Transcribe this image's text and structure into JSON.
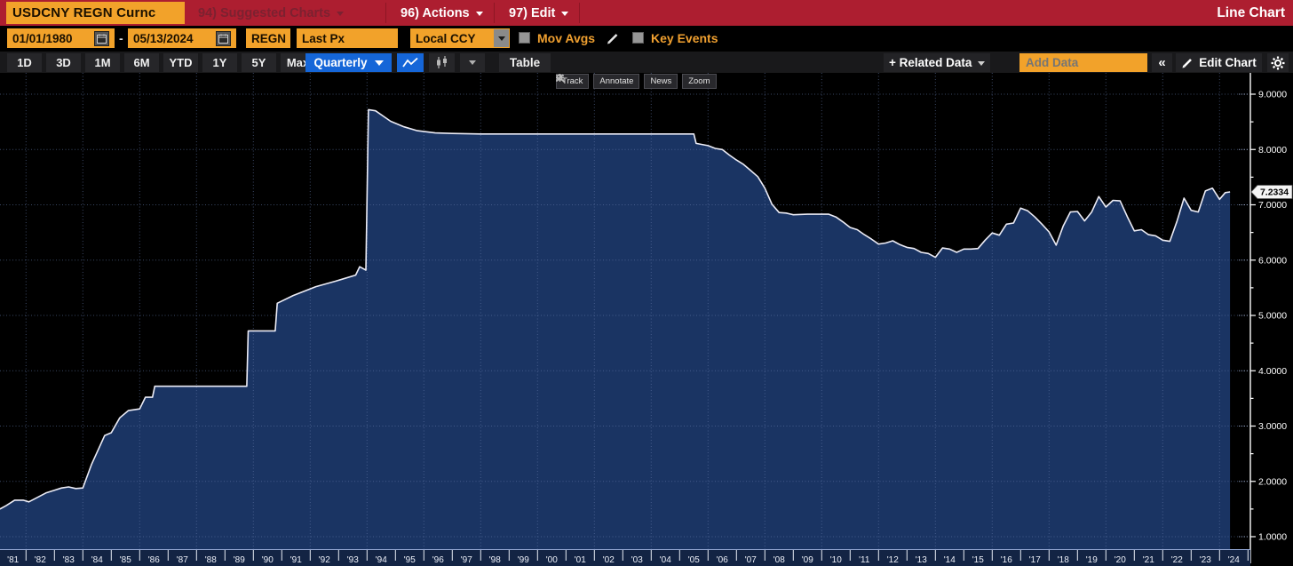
{
  "titlebar": {
    "ticker": "USDCNY REGN Curnc",
    "menus": [
      {
        "label": "94) Suggested Charts"
      },
      {
        "label": "96) Actions"
      },
      {
        "label": "97) Edit"
      }
    ],
    "window_title": "Line Chart"
  },
  "filters": {
    "date_from": "01/01/1980",
    "date_separator": "-",
    "date_to": "05/13/2024",
    "regn": "REGN",
    "price_field": "Last Px",
    "currency": "Local CCY",
    "mov_avgs_label": "Mov Avgs",
    "key_events_label": "Key Events"
  },
  "toolbar": {
    "ranges": [
      "1D",
      "3D",
      "1M",
      "6M",
      "YTD",
      "1Y",
      "5Y",
      "Max"
    ],
    "period": "Quarterly",
    "table_label": "Table",
    "related_data_label": "+ Related Data",
    "add_data_placeholder": "Add Data",
    "collapse_label": "«",
    "edit_chart_label": "Edit Chart"
  },
  "chart_tools": [
    "Track",
    "Annotate",
    "News",
    "Zoom"
  ],
  "chart_data": {
    "type": "area",
    "security": "USDCNY REGN Curnc",
    "field": "Last Px",
    "period": "Quarterly",
    "x_range_years": [
      1981.08,
      2024.37
    ],
    "ylim": [
      1.0,
      9.0
    ],
    "grid": "dotted",
    "y_ticks": [
      {
        "v": 9,
        "label": "9.0000"
      },
      {
        "v": 8,
        "label": "8.0000"
      },
      {
        "v": 7,
        "label": "7.0000"
      },
      {
        "v": 6,
        "label": "6.0000"
      },
      {
        "v": 5,
        "label": "5.0000"
      },
      {
        "v": 4,
        "label": "4.0000"
      },
      {
        "v": 3,
        "label": "3.0000"
      },
      {
        "v": 2,
        "label": "2.0000"
      },
      {
        "v": 1,
        "label": "1.0000"
      }
    ],
    "x_year_labels": [
      "'81",
      "'82",
      "'83",
      "'84",
      "'85",
      "'86",
      "'87",
      "'88",
      "'89",
      "'90",
      "'91",
      "'92",
      "'93",
      "'94",
      "'95",
      "'96",
      "'97",
      "'98",
      "'99",
      "'00",
      "'01",
      "'02",
      "'03",
      "'04",
      "'05",
      "'06",
      "'07",
      "'08",
      "'09",
      "'10",
      "'11",
      "'12",
      "'13",
      "'14",
      "'15",
      "'16",
      "'17",
      "'18",
      "'19",
      "'20",
      "'21",
      "'22",
      "'23",
      "'24"
    ],
    "last_price": {
      "value": 7.2334,
      "label": "7.2334"
    },
    "colors": {
      "fill": "#1a3463",
      "line": "#ececf6",
      "grid": "#5e74a4",
      "axis": "#ffffff",
      "background": "#000000",
      "strip": "#132444",
      "tag_bg": "#f4f4f4",
      "tag_text": "#000000"
    },
    "series": [
      {
        "name": "USDCNY Last Px",
        "points": [
          [
            1981.08,
            1.5
          ],
          [
            1981.3,
            1.56
          ],
          [
            1981.6,
            1.66
          ],
          [
            1981.9,
            1.66
          ],
          [
            1982.1,
            1.63
          ],
          [
            1982.4,
            1.71
          ],
          [
            1982.7,
            1.79
          ],
          [
            1983.0,
            1.84
          ],
          [
            1983.25,
            1.88
          ],
          [
            1983.5,
            1.9
          ],
          [
            1983.75,
            1.87
          ],
          [
            1984.0,
            1.88
          ],
          [
            1984.3,
            2.3
          ],
          [
            1984.77,
            2.83
          ],
          [
            1985.0,
            2.88
          ],
          [
            1985.3,
            3.15
          ],
          [
            1985.6,
            3.28
          ],
          [
            1986.0,
            3.31
          ],
          [
            1986.2,
            3.52
          ],
          [
            1986.45,
            3.52
          ],
          [
            1986.53,
            3.72
          ],
          [
            1987.0,
            3.72
          ],
          [
            1988.0,
            3.72
          ],
          [
            1989.0,
            3.72
          ],
          [
            1989.77,
            3.72
          ],
          [
            1989.82,
            4.72
          ],
          [
            1990.77,
            4.72
          ],
          [
            1990.84,
            5.22
          ],
          [
            1991.4,
            5.36
          ],
          [
            1992.2,
            5.52
          ],
          [
            1992.9,
            5.62
          ],
          [
            1993.6,
            5.73
          ],
          [
            1993.74,
            5.88
          ],
          [
            1993.96,
            5.82
          ],
          [
            1994.05,
            8.72
          ],
          [
            1994.3,
            8.7
          ],
          [
            1994.83,
            8.51
          ],
          [
            1995.3,
            8.41
          ],
          [
            1995.77,
            8.34
          ],
          [
            1996.4,
            8.3
          ],
          [
            1997.0,
            8.29
          ],
          [
            1998.0,
            8.28
          ],
          [
            2000.0,
            8.28
          ],
          [
            2002.0,
            8.28
          ],
          [
            2004.0,
            8.28
          ],
          [
            2005.5,
            8.28
          ],
          [
            2005.58,
            8.11
          ],
          [
            2006.0,
            8.07
          ],
          [
            2006.25,
            8.02
          ],
          [
            2006.5,
            8.0
          ],
          [
            2006.75,
            7.9
          ],
          [
            2007.0,
            7.81
          ],
          [
            2007.25,
            7.73
          ],
          [
            2007.5,
            7.62
          ],
          [
            2007.75,
            7.51
          ],
          [
            2008.0,
            7.3
          ],
          [
            2008.25,
            7.01
          ],
          [
            2008.5,
            6.86
          ],
          [
            2008.75,
            6.85
          ],
          [
            2009.0,
            6.82
          ],
          [
            2009.5,
            6.83
          ],
          [
            2010.0,
            6.83
          ],
          [
            2010.25,
            6.83
          ],
          [
            2010.5,
            6.78
          ],
          [
            2010.75,
            6.69
          ],
          [
            2011.0,
            6.59
          ],
          [
            2011.25,
            6.55
          ],
          [
            2011.5,
            6.46
          ],
          [
            2011.75,
            6.38
          ],
          [
            2012.0,
            6.29
          ],
          [
            2012.25,
            6.31
          ],
          [
            2012.5,
            6.35
          ],
          [
            2012.75,
            6.28
          ],
          [
            2013.0,
            6.23
          ],
          [
            2013.25,
            6.21
          ],
          [
            2013.5,
            6.14
          ],
          [
            2013.75,
            6.12
          ],
          [
            2014.0,
            6.05
          ],
          [
            2014.25,
            6.22
          ],
          [
            2014.5,
            6.2
          ],
          [
            2014.75,
            6.14
          ],
          [
            2015.0,
            6.2
          ],
          [
            2015.25,
            6.2
          ],
          [
            2015.5,
            6.21
          ],
          [
            2015.75,
            6.36
          ],
          [
            2016.0,
            6.49
          ],
          [
            2016.25,
            6.45
          ],
          [
            2016.5,
            6.65
          ],
          [
            2016.75,
            6.67
          ],
          [
            2017.0,
            6.94
          ],
          [
            2017.25,
            6.89
          ],
          [
            2017.5,
            6.78
          ],
          [
            2017.75,
            6.65
          ],
          [
            2018.0,
            6.51
          ],
          [
            2018.25,
            6.27
          ],
          [
            2018.5,
            6.62
          ],
          [
            2018.75,
            6.87
          ],
          [
            2019.0,
            6.88
          ],
          [
            2019.25,
            6.71
          ],
          [
            2019.5,
            6.87
          ],
          [
            2019.75,
            7.15
          ],
          [
            2020.0,
            6.96
          ],
          [
            2020.25,
            7.08
          ],
          [
            2020.5,
            7.07
          ],
          [
            2020.75,
            6.79
          ],
          [
            2021.0,
            6.53
          ],
          [
            2021.25,
            6.55
          ],
          [
            2021.5,
            6.46
          ],
          [
            2021.75,
            6.44
          ],
          [
            2022.0,
            6.36
          ],
          [
            2022.25,
            6.34
          ],
          [
            2022.5,
            6.7
          ],
          [
            2022.75,
            7.12
          ],
          [
            2023.0,
            6.9
          ],
          [
            2023.25,
            6.87
          ],
          [
            2023.5,
            7.25
          ],
          [
            2023.75,
            7.3
          ],
          [
            2024.0,
            7.1
          ],
          [
            2024.2,
            7.22
          ],
          [
            2024.37,
            7.2334
          ]
        ]
      }
    ]
  }
}
